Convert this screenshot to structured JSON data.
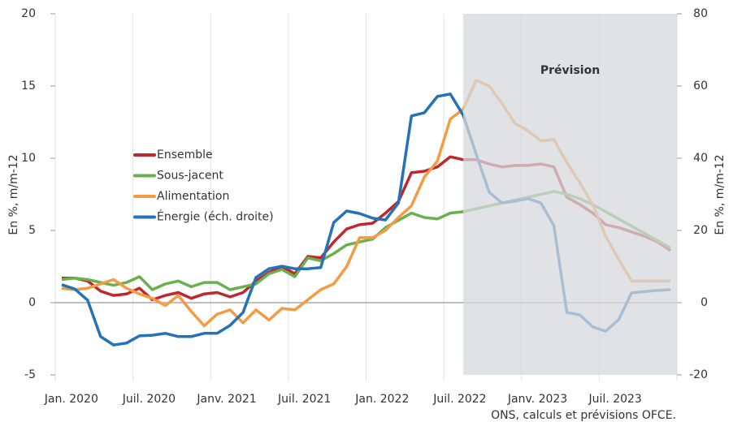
{
  "chart_data": {
    "type": "line",
    "categories": [
      "Jan. 2020",
      null,
      null,
      null,
      null,
      null,
      "Juil. 2020",
      null,
      null,
      null,
      null,
      null,
      "Janv. 2021",
      null,
      null,
      null,
      null,
      null,
      "Juil. 2021",
      null,
      null,
      null,
      null,
      null,
      "Jan. 2022",
      null,
      null,
      null,
      null,
      null,
      "Juil. 2022",
      null,
      null,
      null,
      null,
      null,
      "Janv. 2023",
      null,
      null,
      null,
      null,
      null,
      "Juil. 2023",
      null,
      null,
      null,
      null,
      null
    ],
    "series": [
      {
        "name": "Ensemble",
        "color": "#c0272d",
        "values": [
          1.7,
          1.7,
          1.5,
          0.8,
          0.5,
          0.6,
          1.0,
          0.2,
          0.5,
          0.7,
          0.3,
          0.6,
          0.7,
          0.4,
          0.7,
          1.5,
          2.1,
          2.5,
          2.0,
          3.2,
          3.1,
          4.2,
          5.1,
          5.4,
          5.5,
          6.2,
          7.0,
          9.0,
          9.1,
          9.4,
          10.1,
          9.9,
          9.9,
          9.6,
          9.4,
          9.5,
          9.5,
          9.6,
          9.4,
          7.3,
          6.8,
          6.2,
          5.4,
          5.2,
          4.9,
          4.6,
          4.2,
          3.6
        ]
      },
      {
        "name": "Sous-jacent",
        "color": "#6ab04c",
        "values": [
          1.6,
          1.7,
          1.6,
          1.4,
          1.2,
          1.4,
          1.8,
          0.9,
          1.3,
          1.5,
          1.1,
          1.4,
          1.4,
          0.9,
          1.1,
          1.3,
          2.0,
          2.3,
          1.8,
          3.1,
          2.9,
          3.4,
          4.0,
          4.2,
          4.4,
          5.2,
          5.7,
          6.2,
          5.9,
          5.8,
          6.2,
          6.3,
          6.5,
          6.7,
          6.9,
          7.1,
          7.3,
          7.5,
          7.7,
          7.5,
          7.2,
          6.8,
          6.3,
          5.8,
          5.3,
          4.8,
          4.3,
          3.8
        ]
      },
      {
        "name": "Alimentation",
        "color": "#f39c45",
        "values": [
          1.0,
          0.9,
          1.0,
          1.3,
          1.6,
          1.0,
          0.6,
          0.3,
          -0.2,
          0.5,
          -0.6,
          -1.6,
          -0.8,
          -0.5,
          -1.4,
          -0.5,
          -1.2,
          -0.4,
          -0.5,
          0.2,
          0.9,
          1.3,
          2.5,
          4.5,
          4.5,
          5.0,
          5.9,
          6.7,
          8.7,
          9.8,
          12.7,
          13.4,
          15.4,
          15.0,
          13.8,
          12.4,
          11.9,
          11.2,
          11.3,
          9.7,
          8.3,
          6.8,
          4.6,
          3.0,
          1.5,
          1.5,
          1.5,
          1.5
        ]
      },
      {
        "name": "Énergie (éch. droite)",
        "color": "#2472b8",
        "axis": "y2",
        "values": [
          5.0,
          3.8,
          0.7,
          -9.4,
          -11.7,
          -11.2,
          -9.2,
          -9.0,
          -8.5,
          -9.4,
          -9.4,
          -8.5,
          -8.5,
          -6.3,
          -2.7,
          7.0,
          9.4,
          10.1,
          9.4,
          9.4,
          9.7,
          22.2,
          25.4,
          24.7,
          23.4,
          22.9,
          27.6,
          51.7,
          52.6,
          57.1,
          57.8,
          51.9,
          41.1,
          30.6,
          27.6,
          28.1,
          28.8,
          27.6,
          21.3,
          -2.7,
          -3.4,
          -6.7,
          -7.9,
          -4.7,
          2.7,
          3.1,
          3.4,
          3.6
        ]
      }
    ],
    "ylabel": "En %, m/m-12",
    "y2label": "En %, m/m-12",
    "ylim": [
      -5,
      20
    ],
    "yticks": [
      -5,
      0,
      5,
      10,
      15,
      20
    ],
    "y2lim": [
      -20,
      80
    ],
    "y2ticks": [
      -20,
      0,
      20,
      40,
      60,
      80
    ],
    "annotations": [
      {
        "text": "Prévision",
        "start": 32
      }
    ],
    "source": "ONS, calculs et prévisions OFCE."
  }
}
